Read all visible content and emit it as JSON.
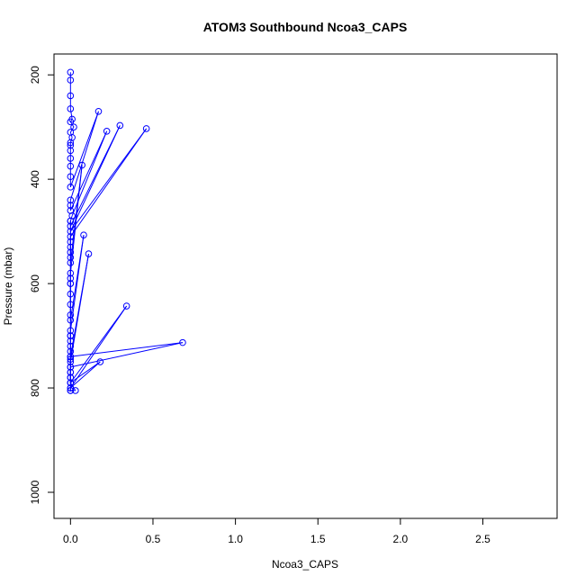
{
  "chart_data": {
    "type": "line",
    "title": "ATOM3 Southbound Ncoa3_CAPS",
    "xlabel": "Ncoa3_CAPS",
    "ylabel": "Pressure (mbar)",
    "xlim": [
      -0.1,
      2.95
    ],
    "ylim": [
      1050,
      160
    ],
    "y_reversed": true,
    "x_ticks": [
      0.0,
      0.5,
      1.0,
      1.5,
      2.0,
      2.5
    ],
    "x_tick_labels": [
      "0.0",
      "0.5",
      "1.0",
      "1.5",
      "2.0",
      "2.5"
    ],
    "y_ticks": [
      200,
      400,
      600,
      800,
      1000
    ],
    "y_tick_labels": [
      "200",
      "400",
      "600",
      "800",
      "1000"
    ],
    "grid": false,
    "series_color": "#0000ff",
    "series": [
      {
        "x": [
          0.0,
          0.0,
          0.0,
          0.0,
          0.01,
          0.0,
          0.02,
          0.0,
          0.01,
          0.0,
          0.0,
          0.0,
          0.0,
          0.0,
          0.0,
          0.0,
          0.17,
          0.0,
          0.0,
          0.0,
          0.22,
          0.01,
          0.0,
          0.0,
          0.3,
          0.0,
          0.46,
          0.0,
          0.0,
          0.0,
          0.0,
          0.0,
          0.0,
          0.07,
          0.0,
          0.0,
          0.0,
          0.0,
          0.0,
          0.0,
          0.0,
          0.08,
          0.0,
          0.0,
          0.0,
          0.0,
          0.0,
          0.0,
          0.11,
          0.0,
          0.0,
          0.0,
          0.0,
          0.0,
          0.34,
          0.0,
          0.0,
          0.0,
          0.0,
          0.0,
          0.68,
          0.0,
          0.0,
          0.0,
          0.0,
          0.18,
          0.0,
          0.0,
          0.0,
          0.0,
          0.0,
          0.03,
          0.0
        ],
        "y": [
          195,
          210,
          240,
          265,
          285,
          290,
          300,
          310,
          320,
          330,
          335,
          345,
          360,
          375,
          395,
          415,
          270,
          440,
          450,
          460,
          308,
          470,
          480,
          490,
          297,
          500,
          303,
          510,
          520,
          530,
          540,
          550,
          560,
          373,
          580,
          590,
          600,
          620,
          640,
          660,
          670,
          507,
          690,
          700,
          710,
          720,
          730,
          740,
          543,
          750,
          760,
          770,
          780,
          790,
          643,
          800,
          480,
          600,
          700,
          740,
          713,
          760,
          770,
          780,
          790,
          750,
          800,
          805,
          740,
          745,
          790,
          805,
          805
        ]
      }
    ]
  }
}
